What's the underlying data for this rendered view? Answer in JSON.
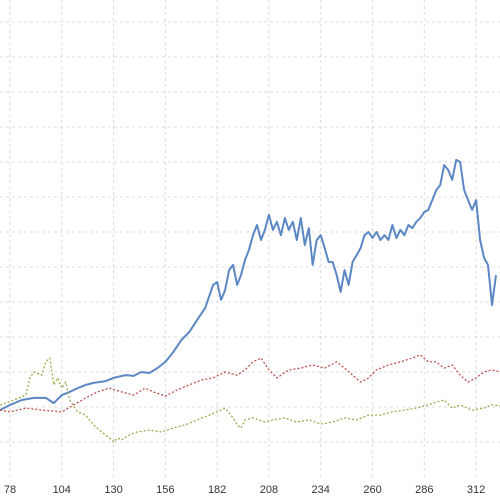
{
  "chart_data": {
    "type": "line",
    "xlim": [
      73,
      324
    ],
    "xticks": [
      78,
      104,
      130,
      156,
      182,
      208,
      234,
      260,
      286,
      312
    ],
    "ylim": [
      0,
      13.6
    ],
    "yticks": [
      1,
      2,
      3,
      4,
      5,
      6,
      7,
      8,
      9,
      10,
      11,
      12,
      13
    ],
    "show_ytick_labels": false,
    "grid": true,
    "series": [
      {
        "color": "#5b87c5",
        "style": "solid",
        "x": [
          73,
          78,
          84,
          90,
          96,
          100,
          104,
          108,
          112,
          116,
          120,
          126,
          130,
          136,
          140,
          144,
          148,
          152,
          156,
          160,
          164,
          168,
          172,
          176,
          180,
          182,
          184,
          186,
          188,
          190,
          192,
          194,
          196,
          198,
          200,
          202,
          204,
          206,
          208,
          210,
          212,
          214,
          216,
          218,
          220,
          222,
          224,
          226,
          228,
          230,
          232,
          234,
          236,
          238,
          240,
          242,
          244,
          246,
          248,
          250,
          252,
          254,
          256,
          258,
          260,
          262,
          264,
          266,
          268,
          270,
          272,
          274,
          276,
          278,
          280,
          282,
          284,
          286,
          288,
          290,
          292,
          294,
          296,
          298,
          300,
          302,
          304,
          306,
          308,
          310,
          312,
          314,
          316,
          318,
          320,
          322
        ],
        "values": [
          1.91,
          2.06,
          2.2,
          2.26,
          2.26,
          2.11,
          2.34,
          2.43,
          2.54,
          2.63,
          2.69,
          2.74,
          2.83,
          2.91,
          2.89,
          3.0,
          2.97,
          3.11,
          3.29,
          3.57,
          3.91,
          4.14,
          4.49,
          4.83,
          5.49,
          5.57,
          5.06,
          5.34,
          5.91,
          6.06,
          5.49,
          5.77,
          6.2,
          6.49,
          6.91,
          7.2,
          6.77,
          7.06,
          7.49,
          7.06,
          7.29,
          6.91,
          7.4,
          7.06,
          7.29,
          6.77,
          7.4,
          6.63,
          7.11,
          6.06,
          6.77,
          6.91,
          6.54,
          6.14,
          6.14,
          5.77,
          5.29,
          5.91,
          5.49,
          6.14,
          6.34,
          6.54,
          6.91,
          7.0,
          6.83,
          7.0,
          6.77,
          6.91,
          6.77,
          7.2,
          6.83,
          7.06,
          6.91,
          7.2,
          7.11,
          7.29,
          7.4,
          7.57,
          7.63,
          7.91,
          8.2,
          8.34,
          8.91,
          8.77,
          8.49,
          9.06,
          9.0,
          8.2,
          7.91,
          7.63,
          7.91,
          6.77,
          6.26,
          6.06,
          4.91,
          5.77
        ]
      },
      {
        "color": "#c0504d",
        "style": "dotted",
        "x": [
          73,
          78,
          86,
          94,
          104,
          110,
          116,
          122,
          128,
          134,
          140,
          146,
          150,
          156,
          162,
          168,
          174,
          180,
          186,
          192,
          196,
          200,
          204,
          208,
          212,
          218,
          224,
          230,
          236,
          242,
          246,
          250,
          254,
          258,
          262,
          268,
          274,
          280,
          284,
          288,
          292,
          296,
          300,
          304,
          308,
          312,
          316,
          320,
          324
        ],
        "values": [
          1.91,
          1.86,
          1.97,
          1.91,
          1.86,
          2.06,
          2.26,
          2.43,
          2.54,
          2.43,
          2.34,
          2.54,
          2.43,
          2.31,
          2.49,
          2.63,
          2.77,
          2.83,
          3.0,
          2.91,
          3.06,
          3.29,
          3.4,
          3.06,
          2.83,
          3.06,
          3.11,
          3.2,
          3.11,
          3.29,
          3.11,
          2.91,
          2.71,
          2.83,
          3.06,
          3.2,
          3.29,
          3.4,
          3.49,
          3.29,
          3.29,
          3.11,
          3.2,
          2.91,
          2.71,
          2.83,
          3.0,
          3.06,
          3.0
        ]
      },
      {
        "color": "#9bab4f",
        "style": "dotted",
        "x": [
          73,
          80,
          86,
          88,
          90,
          94,
          96,
          98,
          100,
          102,
          104,
          106,
          108,
          112,
          116,
          120,
          124,
          128,
          130,
          132,
          134,
          138,
          142,
          148,
          154,
          160,
          166,
          172,
          178,
          182,
          186,
          190,
          192,
          194,
          196,
          200,
          206,
          210,
          216,
          222,
          228,
          234,
          240,
          246,
          252,
          258,
          264,
          270,
          276,
          282,
          288,
          292,
          296,
          300,
          304,
          310,
          316,
          320,
          324
        ],
        "values": [
          2.06,
          2.2,
          2.34,
          2.83,
          3.0,
          2.91,
          3.29,
          3.4,
          2.63,
          2.83,
          2.54,
          2.71,
          2.2,
          1.86,
          1.77,
          1.49,
          1.29,
          1.11,
          1.0,
          1.11,
          1.06,
          1.2,
          1.29,
          1.34,
          1.29,
          1.4,
          1.49,
          1.63,
          1.77,
          1.86,
          1.97,
          1.69,
          1.49,
          1.4,
          1.63,
          1.69,
          1.57,
          1.63,
          1.69,
          1.57,
          1.63,
          1.51,
          1.57,
          1.69,
          1.63,
          1.77,
          1.77,
          1.86,
          1.91,
          1.97,
          2.06,
          2.14,
          2.2,
          1.97,
          2.06,
          1.91,
          1.97,
          2.06,
          2.03
        ]
      }
    ]
  }
}
